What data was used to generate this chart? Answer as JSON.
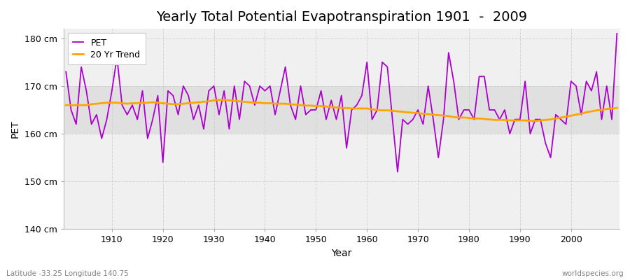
{
  "title": "Yearly Total Potential Evapotranspiration 1901  -  2009",
  "xlabel": "Year",
  "ylabel": "PET",
  "subtitle_left": "Latitude -33.25 Longitude 140.75",
  "subtitle_right": "worldspecies.org",
  "years": [
    1901,
    1902,
    1903,
    1904,
    1905,
    1906,
    1907,
    1908,
    1909,
    1910,
    1911,
    1912,
    1913,
    1914,
    1915,
    1916,
    1917,
    1918,
    1919,
    1920,
    1921,
    1922,
    1923,
    1924,
    1925,
    1926,
    1927,
    1928,
    1929,
    1930,
    1931,
    1932,
    1933,
    1934,
    1935,
    1936,
    1937,
    1938,
    1939,
    1940,
    1941,
    1942,
    1943,
    1944,
    1945,
    1946,
    1947,
    1948,
    1949,
    1950,
    1951,
    1952,
    1953,
    1954,
    1955,
    1956,
    1957,
    1958,
    1959,
    1960,
    1961,
    1962,
    1963,
    1964,
    1965,
    1966,
    1967,
    1968,
    1969,
    1970,
    1971,
    1972,
    1973,
    1974,
    1975,
    1976,
    1977,
    1978,
    1979,
    1980,
    1981,
    1982,
    1983,
    1984,
    1985,
    1986,
    1987,
    1988,
    1989,
    1990,
    1991,
    1992,
    1993,
    1994,
    1995,
    1996,
    1997,
    1998,
    1999,
    2000,
    2001,
    2002,
    2003,
    2004,
    2005,
    2006,
    2007,
    2008,
    2009
  ],
  "pet": [
    173,
    165,
    162,
    174,
    169,
    162,
    164,
    159,
    163,
    169,
    176,
    166,
    164,
    166,
    163,
    169,
    159,
    163,
    168,
    154,
    169,
    168,
    164,
    170,
    168,
    163,
    166,
    161,
    169,
    170,
    164,
    169,
    161,
    170,
    163,
    171,
    170,
    166,
    170,
    169,
    170,
    164,
    169,
    174,
    166,
    163,
    170,
    164,
    165,
    165,
    169,
    163,
    167,
    163,
    168,
    157,
    165,
    166,
    168,
    175,
    163,
    165,
    175,
    174,
    163,
    152,
    163,
    162,
    163,
    165,
    162,
    170,
    163,
    155,
    163,
    177,
    171,
    163,
    165,
    165,
    163,
    172,
    172,
    165,
    165,
    163,
    165,
    160,
    163,
    163,
    171,
    160,
    163,
    163,
    158,
    155,
    164,
    163,
    162,
    171,
    170,
    164,
    171,
    169,
    173,
    163,
    170,
    163,
    181
  ],
  "trend": [
    166.0,
    166.0,
    166.0,
    166.0,
    166.0,
    166.2,
    166.3,
    166.4,
    166.5,
    166.5,
    166.5,
    166.4,
    166.3,
    166.4,
    166.4,
    166.5,
    166.5,
    166.6,
    166.5,
    166.4,
    166.3,
    166.2,
    166.2,
    166.3,
    166.4,
    166.5,
    166.6,
    166.7,
    166.8,
    167.0,
    167.1,
    167.1,
    167.0,
    166.9,
    166.8,
    166.7,
    166.6,
    166.5,
    166.5,
    166.4,
    166.4,
    166.3,
    166.3,
    166.3,
    166.2,
    166.1,
    166.0,
    165.9,
    165.9,
    165.8,
    165.8,
    165.7,
    165.6,
    165.5,
    165.4,
    165.4,
    165.3,
    165.3,
    165.3,
    165.3,
    165.1,
    165.0,
    164.9,
    164.9,
    164.8,
    164.7,
    164.6,
    164.5,
    164.4,
    164.3,
    164.2,
    164.1,
    164.0,
    163.9,
    163.8,
    163.7,
    163.5,
    163.4,
    163.4,
    163.3,
    163.2,
    163.2,
    163.1,
    163.0,
    162.9,
    162.9,
    162.9,
    162.8,
    162.8,
    162.8,
    162.8,
    162.7,
    162.7,
    162.8,
    162.9,
    163.0,
    163.2,
    163.4,
    163.6,
    163.8,
    164.0,
    164.2,
    164.5,
    164.7,
    164.9,
    165.0,
    165.2,
    165.3,
    165.4
  ],
  "pet_color": "#AA00CC",
  "trend_color": "#FFA500",
  "fig_bg_color": "#FFFFFF",
  "plot_bg_color": "#F0F0F0",
  "band_color": "#E0E0E0",
  "band_ymin": 160,
  "band_ymax": 170,
  "grid_color": "#CCCCCC",
  "ylim": [
    140,
    182
  ],
  "yticks": [
    140,
    150,
    160,
    170,
    180
  ],
  "ytick_labels": [
    "140 cm",
    "150 cm",
    "160 cm",
    "170 cm",
    "180 cm"
  ],
  "xticks": [
    1910,
    1920,
    1930,
    1940,
    1950,
    1960,
    1970,
    1980,
    1990,
    2000
  ],
  "title_fontsize": 14,
  "label_fontsize": 10,
  "tick_fontsize": 9,
  "pet_linewidth": 1.3,
  "trend_linewidth": 2.0
}
